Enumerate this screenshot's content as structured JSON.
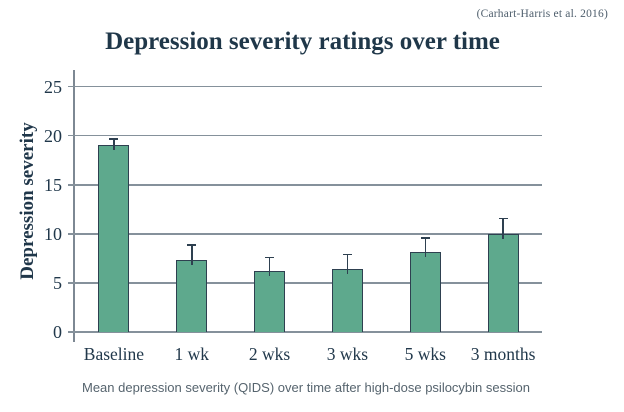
{
  "chart_data": {
    "type": "bar",
    "title": "Depression severity ratings over time",
    "citation": "(Carhart-Harris et al. 2016)",
    "caption": "Mean depression severity (QIDS) over time after high-dose psilocybin session",
    "xlabel": "",
    "ylabel": "Depression severity",
    "categories": [
      "Baseline",
      "1 wk",
      "2 wks",
      "3 wks",
      "5 wks",
      "3 months"
    ],
    "values": [
      19.1,
      7.3,
      6.2,
      6.4,
      8.2,
      10.0
    ],
    "error_upper": [
      0.5,
      1.5,
      1.3,
      1.4,
      1.3,
      1.5
    ],
    "yticks": [
      0,
      5,
      10,
      15,
      20,
      25
    ],
    "ylim": [
      0,
      26.7
    ],
    "grid": true,
    "legend_position": "none",
    "colors": {
      "bar_fill": "#5EA98D",
      "bar_border": "#2E4050",
      "error_bar": "#2E4050",
      "gridline": "#85919B",
      "axis_line": "#7D8893",
      "label_text": "#21384B",
      "title_text": "#1F3749",
      "caption_text": "#56646E",
      "citation_text": "#4E5E6C"
    }
  }
}
